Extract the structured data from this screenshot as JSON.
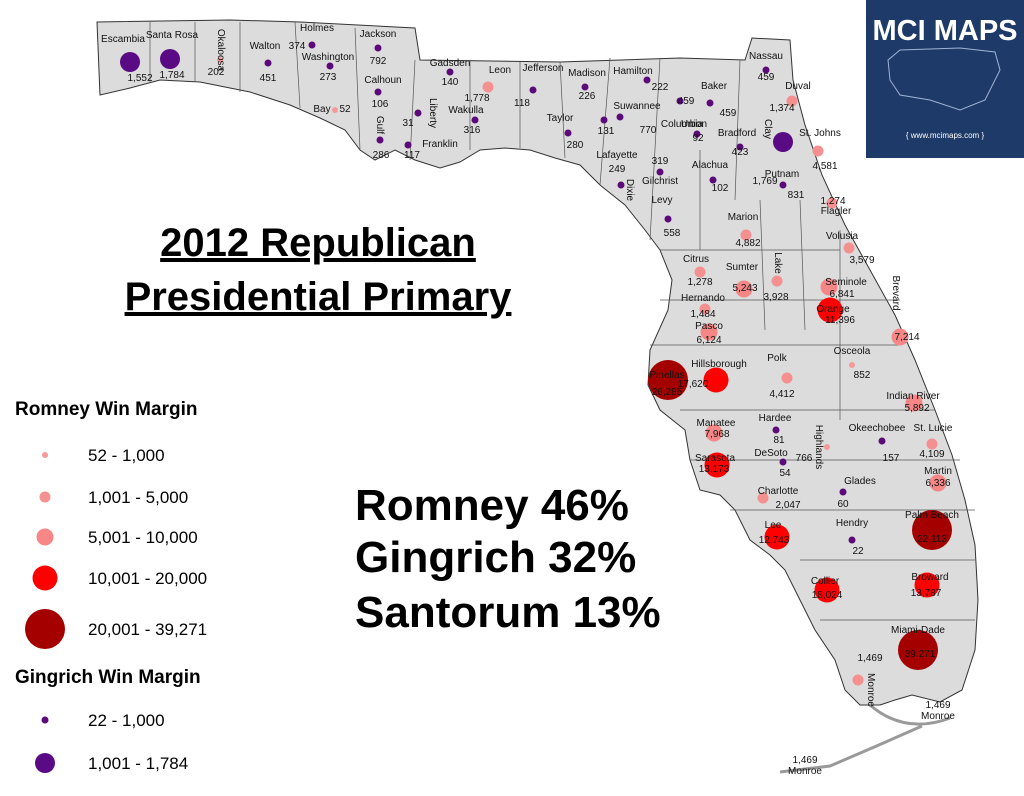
{
  "headline": [
    "2012 Republican ",
    "Presidential Primary"
  ],
  "results": [
    "Romney 46%",
    "Gingrich 32%",
    "Santorum 13%"
  ],
  "logo": {
    "title": "MCI MAPS",
    "url": "{ www.mcimaps.com }"
  },
  "groups": [
    {
      "title": "Romney Win Margin",
      "tiers": [
        {
          "label": "52 - 1,000",
          "min": 52,
          "max": 1000,
          "color": "#f59a9a"
        },
        {
          "label": "1,001 - 5,000",
          "min": 1001,
          "max": 5000,
          "color": "#f59090"
        },
        {
          "label": "5,001 - 10,000",
          "min": 5001,
          "max": 10000,
          "color": "#f78787"
        },
        {
          "label": "10,001 - 20,000",
          "min": 10001,
          "max": 20000,
          "color": "#ff0000"
        },
        {
          "label": "20,001 - 39,271",
          "min": 20001,
          "max": 39271,
          "color": "#a50000"
        }
      ],
      "counties": [
        {
          "name": "Okaloosa",
          "margin": 202
        },
        {
          "name": "Bay",
          "margin": 52
        },
        {
          "name": "Leon",
          "margin": 1778,
          "label": "1,778"
        },
        {
          "name": "Duval",
          "margin": 1374,
          "label": "1,374"
        },
        {
          "name": "St. Johns",
          "margin": 4581,
          "label": "4,581"
        },
        {
          "name": "Flagler",
          "margin": 1274,
          "label": "1,274"
        },
        {
          "name": "Volusia",
          "margin": 3579,
          "label": "3,579"
        },
        {
          "name": "Marion",
          "margin": 4882,
          "label": "4,882"
        },
        {
          "name": "Citrus",
          "margin": 1278,
          "label": "1,278"
        },
        {
          "name": "Sumter",
          "margin": 5243,
          "label": "5,243"
        },
        {
          "name": "Lake",
          "margin": 3928,
          "label": "3,928"
        },
        {
          "name": "Seminole",
          "margin": 6841,
          "label": "6,841"
        },
        {
          "name": "Orange",
          "margin": 11396,
          "label": "11,396"
        },
        {
          "name": "Brevard",
          "margin": 7214,
          "label": "7,214"
        },
        {
          "name": "Hernando",
          "margin": 1484,
          "label": "1,484"
        },
        {
          "name": "Pasco",
          "margin": 6124,
          "label": "6,124"
        },
        {
          "name": "Pinellas",
          "margin": 26285,
          "label": "26,285"
        },
        {
          "name": "Hillsborough",
          "margin": 17620,
          "label": "17,620"
        },
        {
          "name": "Polk",
          "margin": 4412,
          "label": "4,412"
        },
        {
          "name": "Osceola",
          "margin": 852
        },
        {
          "name": "Indian River",
          "margin": 5892,
          "label": "5,892"
        },
        {
          "name": "St. Lucie",
          "margin": 4109,
          "label": "4,109"
        },
        {
          "name": "Martin",
          "margin": 6336,
          "label": "6,336"
        },
        {
          "name": "Manatee",
          "margin": 7968,
          "label": "7,968"
        },
        {
          "name": "Sarasota",
          "margin": 13173,
          "label": "13,173"
        },
        {
          "name": "Highlands",
          "margin": 766
        },
        {
          "name": "Charlotte",
          "margin": 2047,
          "label": "2,047"
        },
        {
          "name": "Lee",
          "margin": 12743,
          "label": "12,743"
        },
        {
          "name": "Collier",
          "margin": 18024,
          "label": "18,024"
        },
        {
          "name": "Palm Beach",
          "margin": 22113,
          "label": "22,113"
        },
        {
          "name": "Broward",
          "margin": 13787,
          "label": "13,787"
        },
        {
          "name": "Miami-Dade",
          "margin": 39271,
          "label": "39,271"
        },
        {
          "name": "Monroe",
          "margin": 1469,
          "label": "1,469"
        }
      ]
    },
    {
      "title": "Gingrich Win Margin",
      "tiers": [
        {
          "label": "22 - 1,000",
          "min": 22,
          "max": 1000,
          "color": "#5c0a7a"
        },
        {
          "label": "1,001 - 1,784",
          "min": 1001,
          "max": 1784,
          "color": "#5a0a85"
        }
      ],
      "counties": [
        {
          "name": "Escambia",
          "margin": 1552,
          "label": "1,552"
        },
        {
          "name": "Santa Rosa",
          "margin": 1784,
          "label": "1,784"
        },
        {
          "name": "Walton",
          "margin": 451
        },
        {
          "name": "Holmes",
          "margin": 374
        },
        {
          "name": "Washington",
          "margin": 273
        },
        {
          "name": "Jackson",
          "margin": 792
        },
        {
          "name": "Calhoun",
          "margin": 106
        },
        {
          "name": "Gulf",
          "margin": 286
        },
        {
          "name": "Liberty",
          "margin": 31
        },
        {
          "name": "Franklin",
          "margin": 117
        },
        {
          "name": "Gadsden",
          "margin": 140
        },
        {
          "name": "Wakulla",
          "margin": 316
        },
        {
          "name": "Jefferson",
          "margin": 118
        },
        {
          "name": "Madison",
          "margin": 226
        },
        {
          "name": "Hamilton",
          "margin": 222
        },
        {
          "name": "Taylor",
          "margin": 280
        },
        {
          "name": "Lafayette",
          "margin": 131
        },
        {
          "name": "Suwannee",
          "margin": 770
        },
        {
          "name": "Columbia",
          "margin": 459
        },
        {
          "name": "Dixie",
          "margin": 249
        },
        {
          "name": "Gilchrist",
          "margin": 319
        },
        {
          "name": "Union",
          "margin": 92
        },
        {
          "name": "Baker",
          "margin": 459
        },
        {
          "name": "Bradford",
          "margin": 423
        },
        {
          "name": "Clay",
          "margin": 1769,
          "label": "1,769"
        },
        {
          "name": "Nassau",
          "margin": 459
        },
        {
          "name": "Alachua",
          "margin": 102
        },
        {
          "name": "Putnam",
          "margin": 831
        },
        {
          "name": "Levy",
          "margin": 558
        },
        {
          "name": "Hardee",
          "margin": 81
        },
        {
          "name": "DeSoto",
          "margin": 54
        },
        {
          "name": "Okeechobee",
          "margin": 157
        },
        {
          "name": "Glades",
          "margin": 60
        },
        {
          "name": "Hendry",
          "margin": 22
        }
      ]
    }
  ],
  "extra_labels": [
    {
      "label": "1,469",
      "name": "Monroe"
    },
    {
      "label": "1,469",
      "name": "Monroe"
    }
  ]
}
